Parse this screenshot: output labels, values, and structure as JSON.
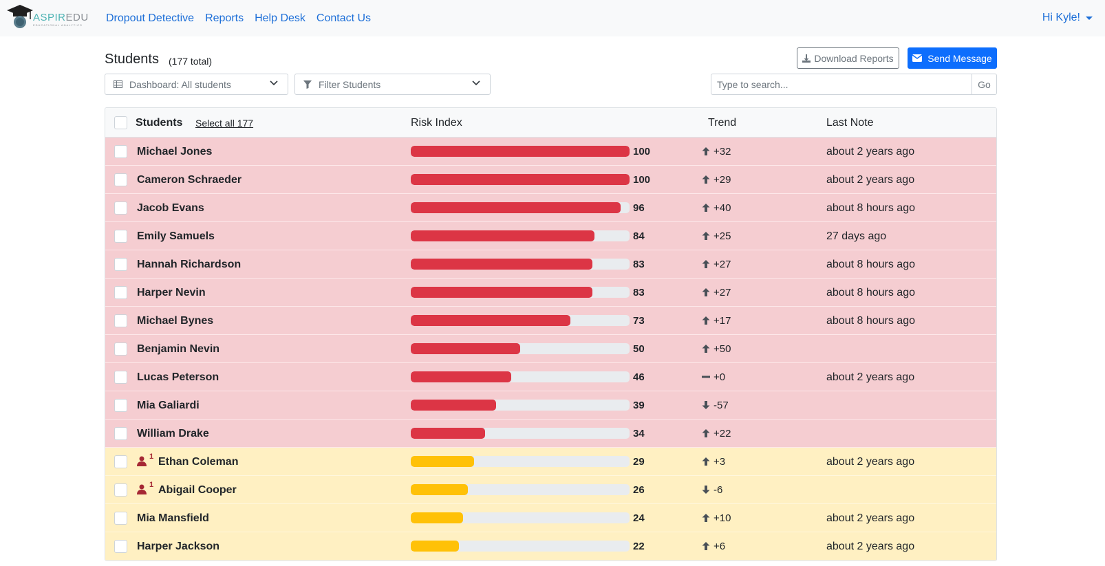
{
  "nav": {
    "brand_a": "ASPIR",
    "brand_b": "EDU",
    "brand_sub": "EDUCATIONAL ANALYTICS",
    "links": [
      "Dropout Detective",
      "Reports",
      "Help Desk",
      "Contact Us"
    ],
    "user": "Hi Kyle!"
  },
  "header": {
    "title": "Students",
    "total": "(177 total)",
    "download_label": "Download Reports",
    "send_label": "Send Message"
  },
  "filters": {
    "dashboard": "Dashboard: All students",
    "filter": "Filter Students",
    "search_placeholder": "Type to search...",
    "go": "Go"
  },
  "table": {
    "col_students": "Students",
    "select_all": "Select all 177",
    "col_risk": "Risk Index",
    "col_trend": "Trend",
    "col_note": "Last Note",
    "rows": [
      {
        "name": "Michael Jones",
        "risk": 100,
        "risk_label": "100",
        "trend_dir": "up",
        "trend": "+32",
        "note": "about 2 years ago",
        "level": "red",
        "flag": ""
      },
      {
        "name": "Cameron Schraeder",
        "risk": 100,
        "risk_label": "100",
        "trend_dir": "up",
        "trend": "+29",
        "note": "about 2 years ago",
        "level": "red",
        "flag": ""
      },
      {
        "name": "Jacob Evans",
        "risk": 96,
        "risk_label": "96",
        "trend_dir": "up",
        "trend": "+40",
        "note": "about 8 hours ago",
        "level": "red",
        "flag": ""
      },
      {
        "name": "Emily Samuels",
        "risk": 84,
        "risk_label": "84",
        "trend_dir": "up",
        "trend": "+25",
        "note": "27 days ago",
        "level": "red",
        "flag": ""
      },
      {
        "name": "Hannah Richardson",
        "risk": 83,
        "risk_label": "83",
        "trend_dir": "up",
        "trend": "+27",
        "note": "about 8 hours ago",
        "level": "red",
        "flag": ""
      },
      {
        "name": "Harper Nevin",
        "risk": 83,
        "risk_label": "83",
        "trend_dir": "up",
        "trend": "+27",
        "note": "about 8 hours ago",
        "level": "red",
        "flag": ""
      },
      {
        "name": "Michael Bynes",
        "risk": 73,
        "risk_label": "73",
        "trend_dir": "up",
        "trend": "+17",
        "note": "about 8 hours ago",
        "level": "red",
        "flag": ""
      },
      {
        "name": "Benjamin Nevin",
        "risk": 50,
        "risk_label": "50",
        "trend_dir": "up",
        "trend": "+50",
        "note": "",
        "level": "red",
        "flag": ""
      },
      {
        "name": "Lucas Peterson",
        "risk": 46,
        "risk_label": "46",
        "trend_dir": "flat",
        "trend": "+0",
        "note": "about 2 years ago",
        "level": "red",
        "flag": ""
      },
      {
        "name": "Mia Galiardi",
        "risk": 39,
        "risk_label": "39",
        "trend_dir": "down",
        "trend": "-57",
        "note": "",
        "level": "red",
        "flag": ""
      },
      {
        "name": "William Drake",
        "risk": 34,
        "risk_label": "34",
        "trend_dir": "up",
        "trend": "+22",
        "note": "",
        "level": "red",
        "flag": ""
      },
      {
        "name": "Ethan Coleman",
        "risk": 29,
        "risk_label": "29",
        "trend_dir": "up",
        "trend": "+3",
        "note": "about 2 years ago",
        "level": "yellow",
        "flag": "1"
      },
      {
        "name": "Abigail Cooper",
        "risk": 26,
        "risk_label": "26",
        "trend_dir": "down",
        "trend": "-6",
        "note": "",
        "level": "yellow",
        "flag": "1"
      },
      {
        "name": "Mia Mansfield",
        "risk": 24,
        "risk_label": "24",
        "trend_dir": "up",
        "trend": "+10",
        "note": "about 2 years ago",
        "level": "yellow",
        "flag": ""
      },
      {
        "name": "Harper Jackson",
        "risk": 22,
        "risk_label": "22",
        "trend_dir": "up",
        "trend": "+6",
        "note": "about 2 years ago",
        "level": "yellow",
        "flag": ""
      }
    ]
  },
  "colors": {
    "high_risk_row": "#f5cdd1",
    "medium_risk_row": "#fff0c2",
    "high_risk_bar": "#dc3545",
    "medium_risk_bar": "#ffc107",
    "link": "#1d6fd8",
    "primary": "#0d6efd"
  },
  "icons": {
    "logo": "graduation-cap-icon",
    "download": "download-icon",
    "send": "envelope-icon",
    "dashboard": "table-icon",
    "filter": "filter-icon",
    "dropdown": "chevron-down-icon",
    "trend_up": "arrow-up-icon",
    "trend_down": "arrow-down-icon",
    "trend_flat": "minus-icon",
    "flag": "person-icon"
  }
}
